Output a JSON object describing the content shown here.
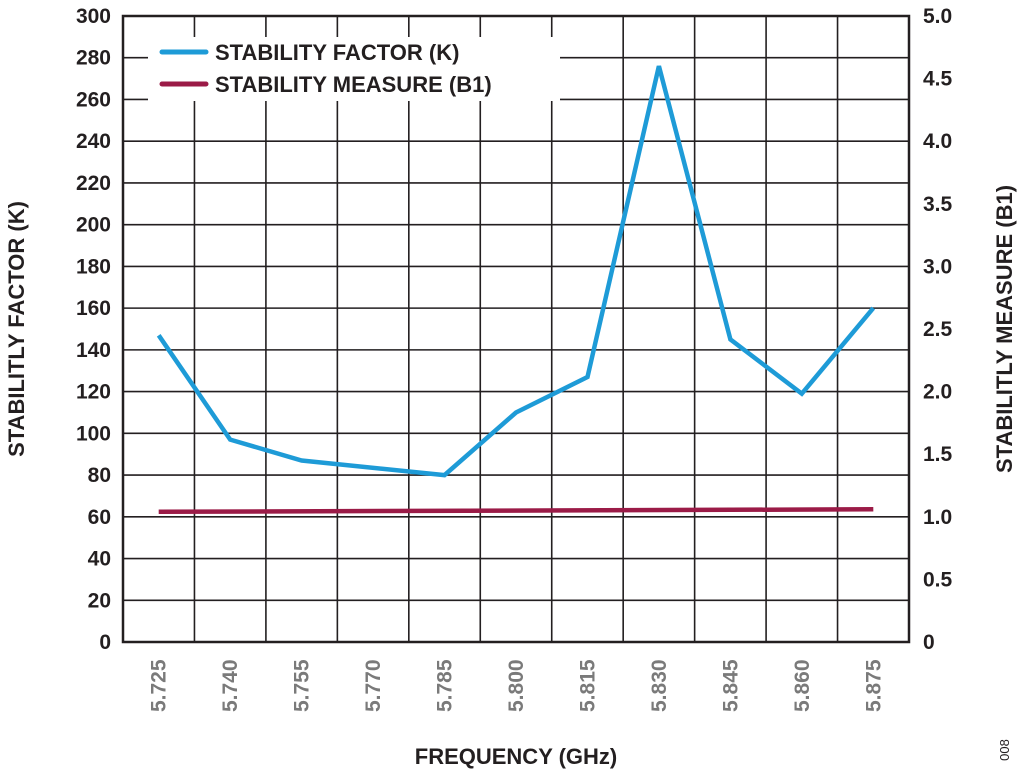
{
  "chart_data": {
    "type": "line",
    "xlabel": "FREQUENCY (GHz)",
    "ylabel_left": "STABILITLY FACTOR (K)",
    "ylabel_right": "STABILITLY MEASURE (B1)",
    "x_tick_labels": [
      "5.725",
      "5.740",
      "5.755",
      "5.770",
      "5.785",
      "5.800",
      "5.815",
      "5.830",
      "5.845",
      "5.860",
      "5.875"
    ],
    "xlim": [
      5.7175,
      5.8825
    ],
    "ylim_left": [
      0,
      300
    ],
    "yticks_left": [
      0,
      20,
      40,
      60,
      80,
      100,
      120,
      140,
      160,
      180,
      200,
      220,
      240,
      260,
      280,
      300
    ],
    "ylim_right": [
      0,
      5.0
    ],
    "yticks_right": [
      "0",
      "0.5",
      "1.0",
      "1.5",
      "2.0",
      "2.5",
      "3.0",
      "3.5",
      "4.0",
      "4.5",
      "5.0"
    ],
    "grid": true,
    "legend_position": "top-left",
    "series": [
      {
        "name": "STABILITY FACTOR (K)",
        "axis": "left",
        "color": "#1e9bd7",
        "x": [
          5.725,
          5.74,
          5.755,
          5.785,
          5.8,
          5.815,
          5.83,
          5.845,
          5.86,
          5.875
        ],
        "y": [
          147,
          97,
          87,
          80,
          110,
          127,
          276,
          145,
          119,
          160
        ]
      },
      {
        "name": "STABILITY MEASURE (B1)",
        "axis": "right",
        "color": "#9b1b47",
        "x": [
          5.725,
          5.875
        ],
        "y": [
          1.04,
          1.06
        ]
      }
    ],
    "figure_id": "008"
  }
}
